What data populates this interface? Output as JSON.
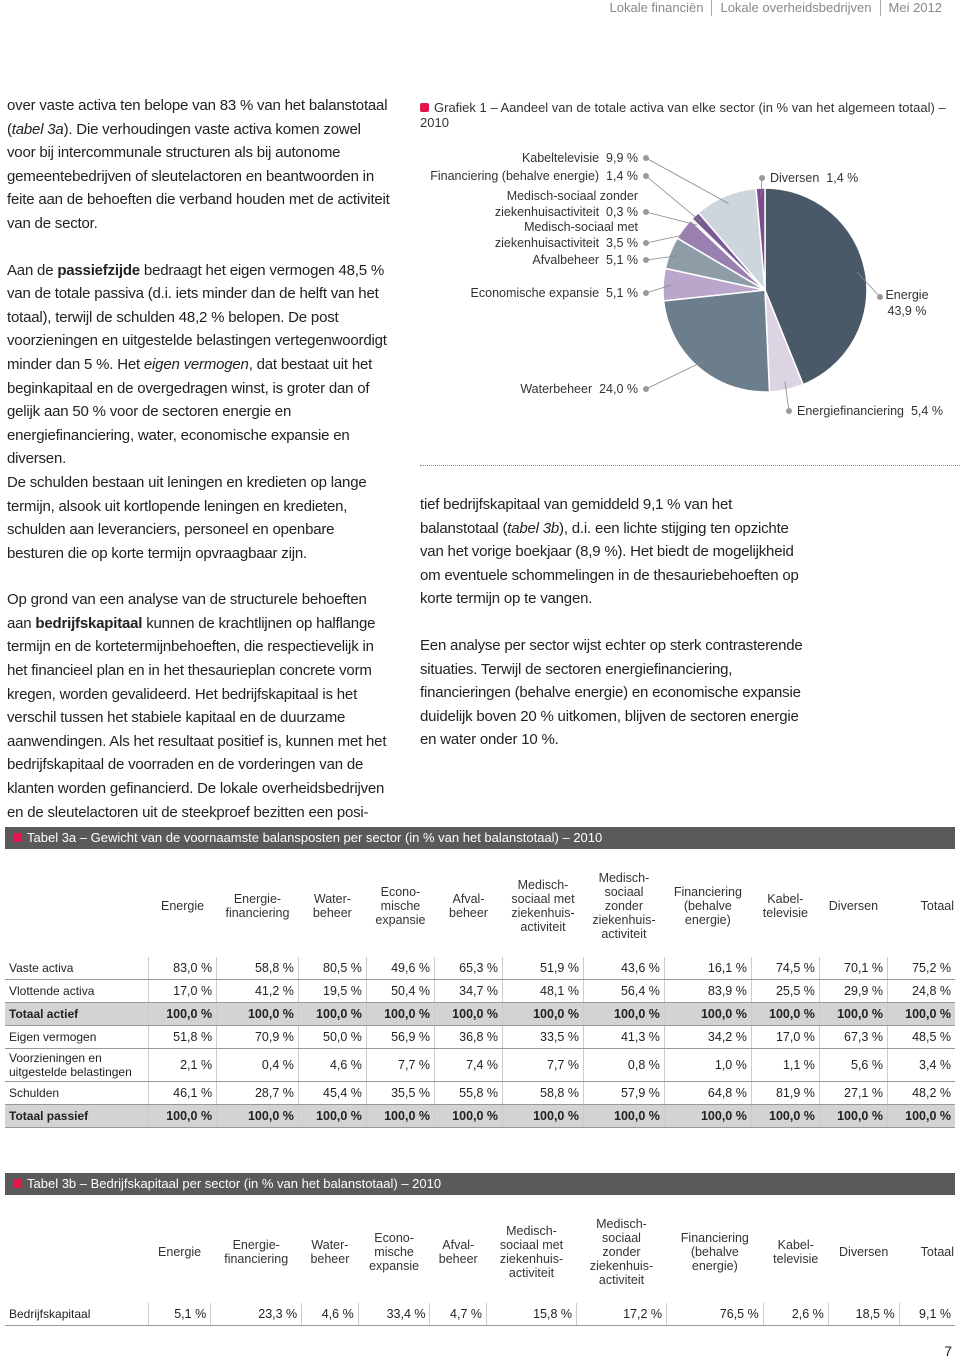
{
  "header": {
    "parts": [
      "Lokale financiën",
      "Lokale overheidsbedrijven",
      "Mei 2012"
    ]
  },
  "left_column": {
    "paragraphs": [
      [
        "over vaste activa ten belope van 83 % van het balanstotaal (",
        "tabel 3a",
        "). Die verhoudingen vaste activa komen zowel voor bij intercommunale structuren als bij autonome gemeentebedrijven of sleutelactoren en beantwoorden in feite aan de behoeften die verband houden met de activiteit van de sector."
      ],
      [
        "Aan de ",
        "passiefzijde",
        " bedraagt het eigen vermogen 48,5 % van de totale passiva (d.i. iets minder dan de helft van het totaal), terwijl de schulden 48,2 % belopen. De post voorzieningen en uitgestelde belastingen vertegenwoordigt minder dan 5 %. Het ",
        "eigen vermogen",
        ", dat bestaat uit het beginkapitaal en de overgedragen winst, is groter dan of gelijk aan 50 % voor de sectoren energie en energiefinanciering, water, economische expansie en diversen."
      ],
      [
        "De schulden bestaan uit leningen en kredieten op lange termijn, alsook uit kortlopende leningen en kredieten, schulden aan leveranciers, personeel en openbare besturen die op korte termijn opvraagbaar zijn."
      ],
      [
        "Op grond van een analyse van de structurele behoeften aan ",
        "bedrijfskapitaal",
        " kunnen de krachtlijnen op halflange termijn en de kortetermijnbehoeften, die respectievelijk in het financieel plan en in het thesaurieplan concrete vorm kregen, worden gevalideerd. Het bedrijfskapitaal is het verschil tussen het stabiele kapitaal en de duurzame aanwendingen. Als het resultaat positief is, kunnen met het bedrijfskapitaal de voorraden en de vorderingen van de klanten worden gefinancierd. De lokale overheidsbedrijven en de sleutelactoren uit de steekproef bezitten een posi-"
      ]
    ]
  },
  "right_column": {
    "paragraphs": [
      [
        "tief bedrijfskapitaal van gemiddeld 9,1 % van het balanstotaal (",
        "tabel 3b",
        "), d.i. een lichte stijging ten opzichte van het vorige boekjaar (8,9 %). Het biedt de mogelijkheid om eventuele schommelingen in de thesauriebehoeften op korte termijn op te vangen."
      ],
      [
        "Een analyse per sector wijst echter op sterk contrasterende situaties. Terwijl de sectoren energiefinanciering, financieringen (behalve energie) en economische expansie duidelijk boven 20 % uitkomen, blijven de sectoren energie en water onder 10 %."
      ]
    ]
  },
  "chart_data": {
    "type": "pie",
    "title": "Grafiek 1 – Aandeel van de totale activa van elke sector (in % van het algemeen totaal) – 2010",
    "categories": [
      "Energie",
      "Energiefinanciering",
      "Waterbeheer",
      "Economische expansie",
      "Afvalbeheer",
      "Medisch-sociaal met\nziekenhuisactiviteit",
      "Medisch-sociaal zonder\nziekenhuisactiviteit",
      "Financiering (behalve energie)",
      "Kabeltelevisie",
      "Diversen"
    ],
    "values": [
      43.9,
      5.4,
      24.0,
      5.1,
      5.1,
      3.5,
      0.3,
      1.4,
      9.9,
      1.4
    ],
    "value_labels": [
      "43,9 %",
      "5,4 %",
      "24,0 %",
      "5,1 %",
      "5,1 %",
      "3,5 %",
      "0,3 %",
      "1,4 %",
      "9,9 %",
      "1,4 %"
    ],
    "colors": [
      "#4a5967",
      "#dcd3e3",
      "#6c7d8b",
      "#bba6cb",
      "#8e9ca7",
      "#9a80b0",
      "#c9c1d2",
      "#7a5a93",
      "#cdd5dd",
      "#7c4d8e"
    ]
  },
  "tables": [
    {
      "title": "Tabel 3a – Gewicht van de voornaamste balansposten per sector (in % van het balanstotaal) – 2010",
      "headers": [
        "Energie",
        "Energie-\nfinanciering",
        "Water-\nbeheer",
        "Econo-\nmische\nexpansie",
        "Afval-\nbeheer",
        "Medisch-\nsociaal met\nziekenhuis-\nactiviteit",
        "Medisch-\nsociaal\nzonder\nziekenhuis-\nactiviteit",
        "Financiering\n(behalve\nenergie)",
        "Kabel-\ntelevisie",
        "Diversen",
        "Totaal"
      ],
      "rows": [
        [
          "Vaste activa",
          "83,0 %",
          "58,8 %",
          "80,5 %",
          "49,6 %",
          "65,3 %",
          "51,9 %",
          "43,6 %",
          "16,1 %",
          "74,5 %",
          "70,1 %",
          "75,2 %"
        ],
        [
          "Vlottende activa",
          "17,0 %",
          "41,2 %",
          "19,5 %",
          "50,4 %",
          "34,7 %",
          "48,1 %",
          "56,4 %",
          "83,9 %",
          "25,5 %",
          "29,9 %",
          "24,8 %"
        ],
        [
          "Totaal actief",
          "100,0 %",
          "100,0 %",
          "100,0 %",
          "100,0 %",
          "100,0 %",
          "100,0 %",
          "100,0 %",
          "100,0 %",
          "100,0 %",
          "100,0 %",
          "100,0 %"
        ],
        [
          "Eigen vermogen",
          "51,8 %",
          "70,9 %",
          "50,0 %",
          "56,9 %",
          "36,8 %",
          "33,5 %",
          "41,3 %",
          "34,2 %",
          "17,0 %",
          "67,3 %",
          "48,5 %"
        ],
        [
          "Voorzieningen en\nuitgestelde belastingen",
          "2,1 %",
          "0,4 %",
          "4,6 %",
          "7,7 %",
          "7,4 %",
          "7,7 %",
          "0,8 %",
          "1,0 %",
          "1,1 %",
          "5,6 %",
          "3,4 %"
        ],
        [
          "Schulden",
          "46,1 %",
          "28,7 %",
          "45,4 %",
          "35,5 %",
          "55,8 %",
          "58,8 %",
          "57,9 %",
          "64,8 %",
          "81,9 %",
          "27,1 %",
          "48,2 %"
        ],
        [
          "Totaal passief",
          "100,0 %",
          "100,0 %",
          "100,0 %",
          "100,0 %",
          "100,0 %",
          "100,0 %",
          "100,0 %",
          "100,0 %",
          "100,0 %",
          "100,0 %",
          "100,0 %"
        ]
      ]
    },
    {
      "title": "Tabel 3b – Bedrijfskapitaal per sector (in % van het balanstotaal) – 2010",
      "headers": [
        "Energie",
        "Energie-\nfinanciering",
        "Water-\nbeheer",
        "Econo-\nmische\nexpansie",
        "Afval-\nbeheer",
        "Medisch-\nsociaal met\nziekenhuis-\nactiviteit",
        "Medisch-\nsociaal\nzonder\nziekenhuis-\nactiviteit",
        "Financiering\n(behalve\nenergie)",
        "Kabel-\ntelevisie",
        "Diversen",
        "Totaal"
      ],
      "rows": [
        [
          "Bedrijfskapitaal",
          "5,1 %",
          "23,3 %",
          "4,6 %",
          "33,4 %",
          "4,7 %",
          "15,8 %",
          "17,2 %",
          "76,5 %",
          "2,6 %",
          "18,5 %",
          "9,1 %"
        ]
      ]
    }
  ],
  "footer": {
    "page_number": "7"
  }
}
